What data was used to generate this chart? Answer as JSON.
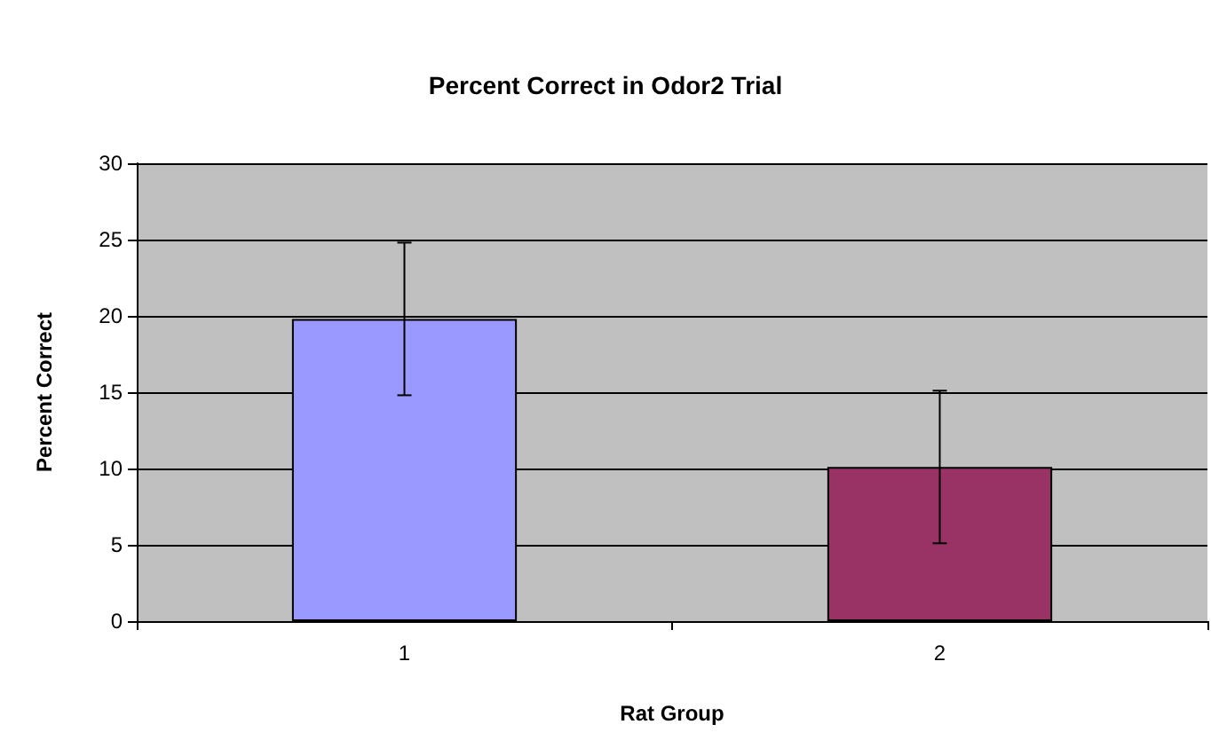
{
  "chart_data": {
    "type": "bar",
    "title": "Percent Correct in Odor2 Trial",
    "xlabel": "Rat Group",
    "ylabel": "Percent Correct",
    "categories": [
      "1",
      "2"
    ],
    "values": [
      19.8,
      10.1
    ],
    "colors": [
      "#9999ff",
      "#993366"
    ],
    "errors": [
      5,
      5
    ],
    "ylim": [
      0,
      30
    ],
    "yticks": [
      0,
      5,
      10,
      15,
      20,
      25,
      30
    ],
    "grid": "y"
  }
}
